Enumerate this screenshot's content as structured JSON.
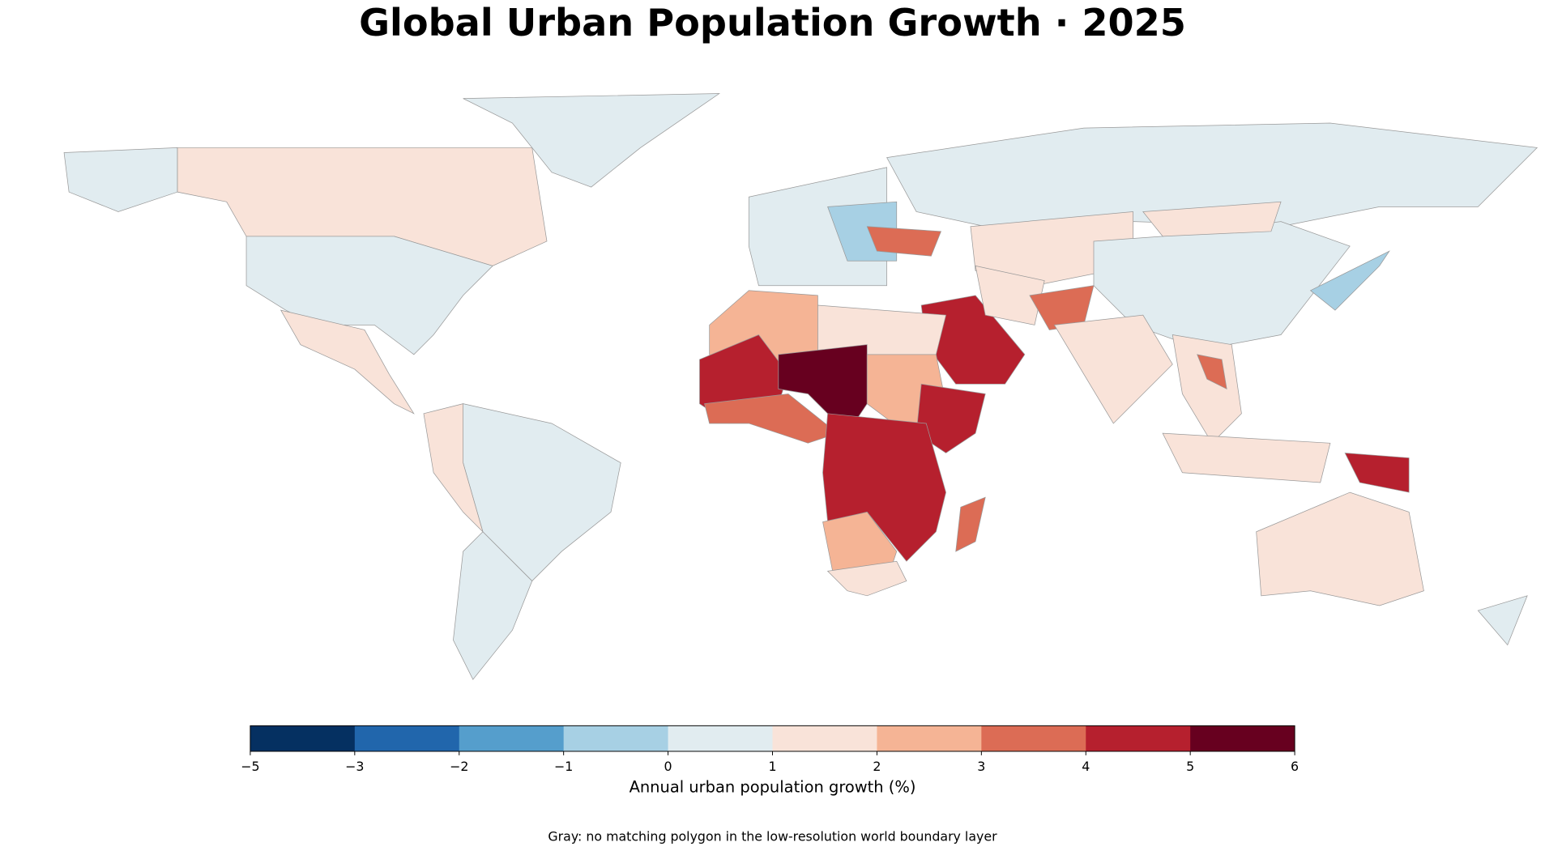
{
  "chart_data": {
    "type": "choropleth",
    "title": "Global Urban Population Growth · 2025",
    "values": [
      1.5,
      0.5,
      0.6,
      1.2,
      0.3,
      0.6,
      1.3,
      0.5,
      0.3,
      -0.5,
      3.5,
      0.3,
      1.5,
      0.4,
      1.5,
      -0.7,
      4.5,
      1.5,
      3.3,
      1.5,
      1.5,
      3.5,
      1.5,
      4.5,
      1.5,
      0.4,
      2.5,
      1.5,
      4.5,
      5.5,
      2.5,
      3.5,
      4.5,
      4.5,
      2.5,
      1.5,
      3.5
    ],
    "colors": [
      "#053061",
      "#2166ac",
      "#559ecc",
      "#a7d0e4",
      "#e1ecf0",
      "#f9e3d9",
      "#f5b495",
      "#dc6c55",
      "#b6202e",
      "#67001f"
    ],
    "ticks": [
      {
        "value": -5,
        "label": "−5"
      },
      {
        "value": -3,
        "label": "−3"
      },
      {
        "value": -2,
        "label": "−2"
      },
      {
        "value": -1,
        "label": "−1"
      },
      0,
      1,
      2,
      3,
      4,
      5,
      6
    ],
    "colorbar_label": "Annual urban population growth (%)",
    "note": "Gray: no matching polygon in the low-resolution world boundary layer"
  }
}
